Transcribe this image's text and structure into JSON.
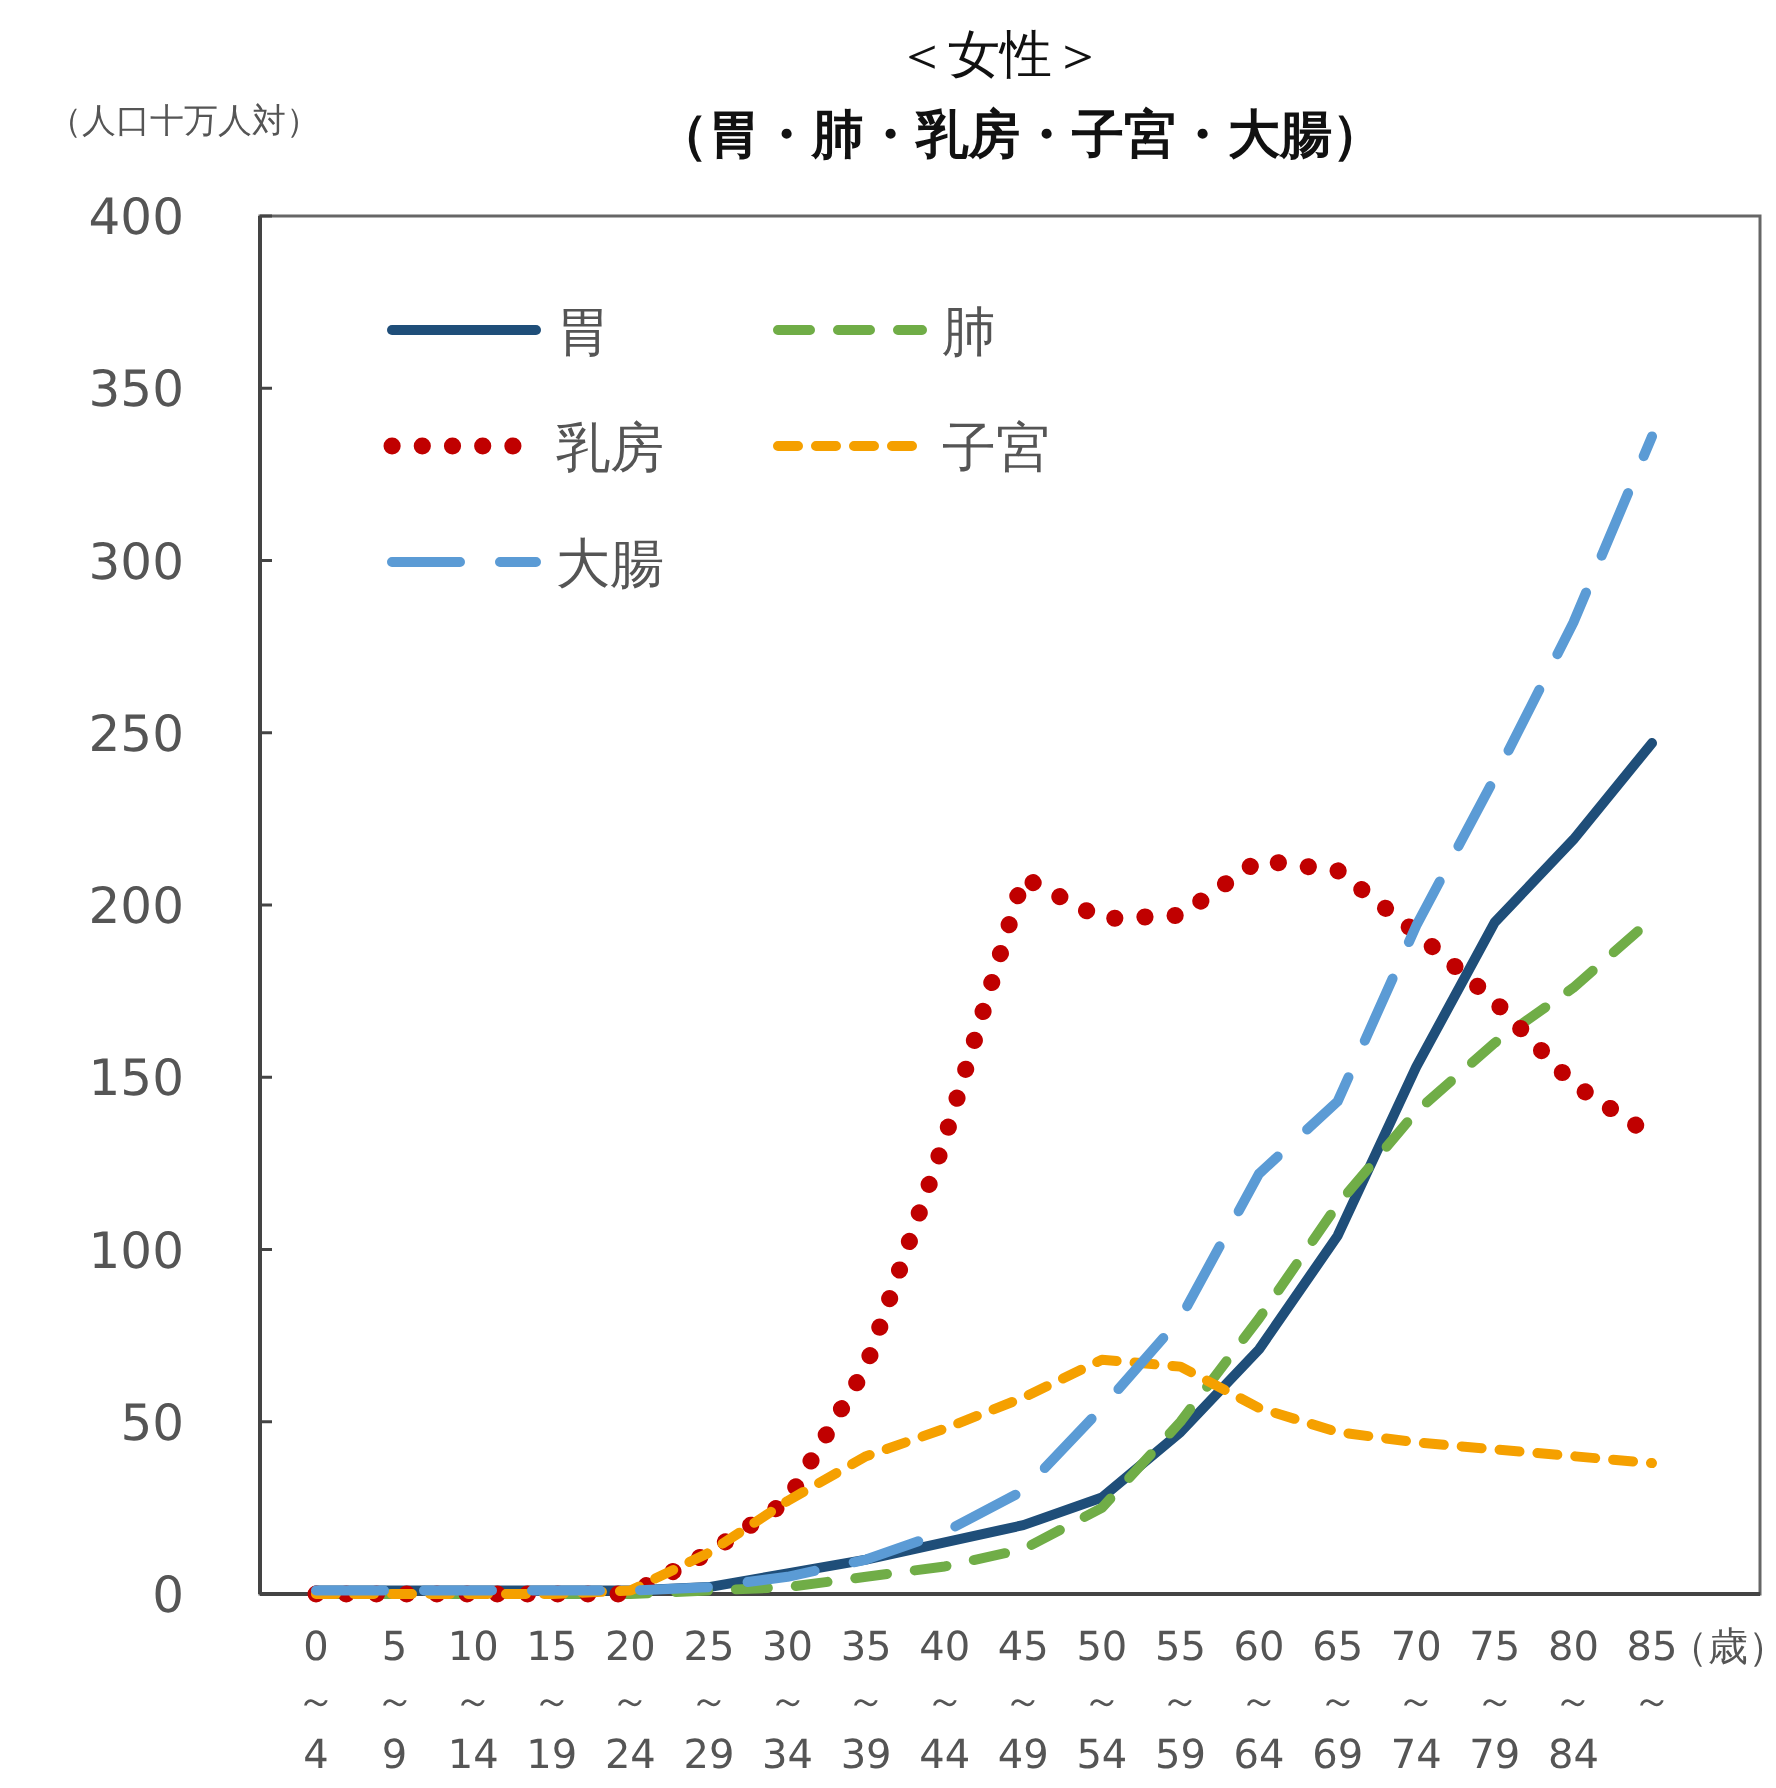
{
  "chart_data": {
    "type": "line",
    "title": "＜女性＞",
    "subtitle": "（胃・肺・乳房・子宮・大腸）",
    "ylabel": "（人口十万人対）",
    "xlabel": "（歳）",
    "categories": [
      "0～4",
      "5～9",
      "10～14",
      "15～19",
      "20～24",
      "25～29",
      "30～34",
      "35～39",
      "40～44",
      "45～49",
      "50～54",
      "55～59",
      "60～64",
      "65～69",
      "70～74",
      "75～79",
      "80～84",
      "85～"
    ],
    "ylim": [
      0,
      400
    ],
    "yticks": [
      0,
      50,
      100,
      150,
      200,
      250,
      300,
      350,
      400
    ],
    "grid": false,
    "legend": "top left",
    "marker": "none",
    "series": [
      {
        "name": "胃",
        "color": "#1f4e79",
        "line_style": "solid",
        "values": [
          1,
          1,
          1,
          1,
          1,
          2,
          6,
          10,
          15,
          20,
          28,
          47,
          71,
          104,
          153,
          195,
          219,
          247
        ]
      },
      {
        "name": "肺",
        "color": "#70ad47",
        "line_style": "dashed",
        "values": [
          0,
          0,
          0,
          0,
          0,
          1,
          2,
          5,
          8,
          13,
          25,
          50,
          80,
          113,
          140,
          160,
          176,
          196
        ]
      },
      {
        "name": "乳房",
        "color": "#c00000",
        "line_style": "dotted",
        "values": [
          0,
          0,
          0,
          0,
          0,
          12,
          27,
          66,
          132,
          208,
          196,
          197,
          213,
          210,
          192,
          172,
          148,
          133
        ]
      },
      {
        "name": "子宮",
        "color": "#f5a000",
        "line_style": "dashed",
        "values": [
          0,
          0,
          0,
          0,
          1,
          12,
          27,
          40,
          48,
          57,
          68,
          66,
          54,
          47,
          44,
          42,
          40,
          38
        ]
      },
      {
        "name": "大腸",
        "color": "#5b9bd5",
        "line_style": "dashed",
        "values": [
          1,
          1,
          1,
          1,
          1,
          2,
          5,
          10,
          18,
          30,
          54,
          80,
          122,
          143,
          194,
          237,
          282,
          336
        ]
      }
    ]
  }
}
